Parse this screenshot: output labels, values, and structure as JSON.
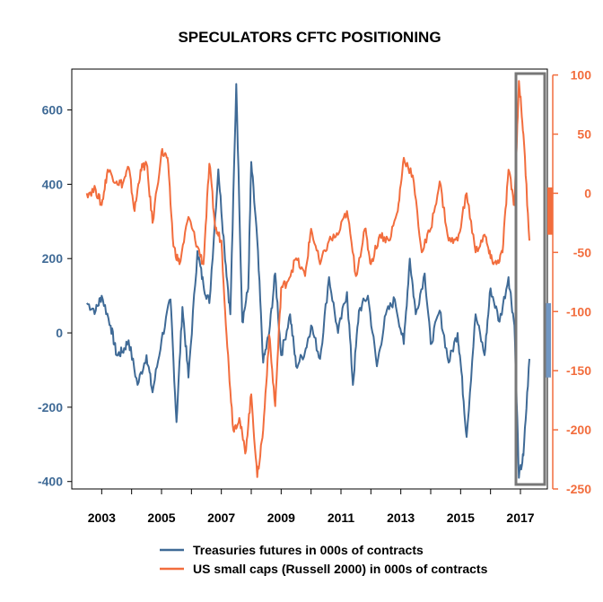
{
  "chart_data": {
    "type": "line",
    "title": "SPECULATORS CFTC POSITIONING",
    "x_ticks": [
      "2003",
      "2005",
      "2007",
      "2009",
      "2011",
      "2013",
      "2015",
      "2017"
    ],
    "xlim": [
      2002.0,
      2017.9
    ],
    "left_axis": {
      "ticks": [
        "-400",
        "-200",
        "0",
        "200",
        "400",
        "600"
      ],
      "ylim": [
        -420,
        710
      ],
      "color": "#3f6a96"
    },
    "right_axis": {
      "ticks": [
        "-250",
        "-200",
        "-150",
        "-100",
        "-50",
        "0",
        "50",
        "100"
      ],
      "ylim": [
        -250,
        105
      ],
      "color": "#f26d3d"
    },
    "series": [
      {
        "name": "Treasuries futures in 000s of contracts",
        "axis": "left",
        "color": "#3f6a96",
        "x": [
          2002.5,
          2002.8,
          2003.0,
          2003.3,
          2003.5,
          2003.7,
          2003.9,
          2004.2,
          2004.5,
          2004.7,
          2005.0,
          2005.3,
          2005.5,
          2005.7,
          2005.9,
          2006.2,
          2006.4,
          2006.6,
          2006.9,
          2007.1,
          2007.3,
          2007.5,
          2007.7,
          2007.9,
          2008.0,
          2008.2,
          2008.4,
          2008.6,
          2008.8,
          2009.0,
          2009.3,
          2009.5,
          2009.8,
          2010.0,
          2010.3,
          2010.6,
          2010.9,
          2011.2,
          2011.4,
          2011.6,
          2011.9,
          2012.2,
          2012.5,
          2012.8,
          2013.1,
          2013.3,
          2013.5,
          2013.8,
          2014.0,
          2014.3,
          2014.6,
          2014.9,
          2015.0,
          2015.2,
          2015.5,
          2015.8,
          2016.0,
          2016.3,
          2016.6,
          2016.8,
          2016.95,
          2017.1,
          2017.3
        ],
        "y": [
          80,
          60,
          100,
          20,
          -60,
          -50,
          -20,
          -140,
          -60,
          -160,
          -20,
          90,
          -240,
          70,
          -120,
          220,
          130,
          80,
          440,
          230,
          50,
          670,
          30,
          120,
          460,
          250,
          -80,
          0,
          160,
          -60,
          50,
          -90,
          -50,
          20,
          -70,
          150,
          0,
          110,
          -140,
          60,
          100,
          -90,
          50,
          90,
          -30,
          200,
          50,
          160,
          -30,
          60,
          -80,
          0,
          -80,
          -280,
          50,
          -60,
          120,
          30,
          150,
          20,
          -390,
          -330,
          -70
        ]
      },
      {
        "name": "US small caps (Russell 2000) in 000s of contracts",
        "axis": "right",
        "color": "#f26d3d",
        "x": [
          2002.5,
          2002.8,
          2003.0,
          2003.2,
          2003.5,
          2003.7,
          2003.9,
          2004.1,
          2004.3,
          2004.5,
          2004.7,
          2005.0,
          2005.2,
          2005.4,
          2005.6,
          2005.9,
          2006.2,
          2006.4,
          2006.6,
          2006.8,
          2007.0,
          2007.2,
          2007.4,
          2007.6,
          2007.8,
          2008.0,
          2008.2,
          2008.4,
          2008.6,
          2008.8,
          2009.0,
          2009.2,
          2009.5,
          2009.8,
          2010.0,
          2010.3,
          2010.6,
          2010.9,
          2011.2,
          2011.5,
          2011.8,
          2012.0,
          2012.3,
          2012.6,
          2012.9,
          2013.1,
          2013.4,
          2013.7,
          2014.0,
          2014.3,
          2014.6,
          2014.9,
          2015.2,
          2015.5,
          2015.8,
          2016.0,
          2016.2,
          2016.4,
          2016.6,
          2016.8,
          2016.95,
          2017.1,
          2017.3
        ],
        "y": [
          0,
          3,
          -10,
          20,
          10,
          8,
          22,
          -15,
          20,
          25,
          -25,
          35,
          30,
          -45,
          -60,
          -20,
          -45,
          -60,
          25,
          -30,
          -40,
          -130,
          -200,
          -190,
          -220,
          -170,
          -240,
          -200,
          -120,
          -180,
          -80,
          -75,
          -55,
          -70,
          -30,
          -60,
          -40,
          -35,
          -15,
          -70,
          -30,
          -60,
          -35,
          -40,
          -15,
          30,
          15,
          -50,
          -30,
          10,
          -40,
          -40,
          0,
          -50,
          -35,
          -55,
          -60,
          -50,
          20,
          -10,
          95,
          50,
          -40
        ]
      }
    ],
    "legend_position": "bottom",
    "annotation": "grey rectangle highlighting 2017 period"
  }
}
